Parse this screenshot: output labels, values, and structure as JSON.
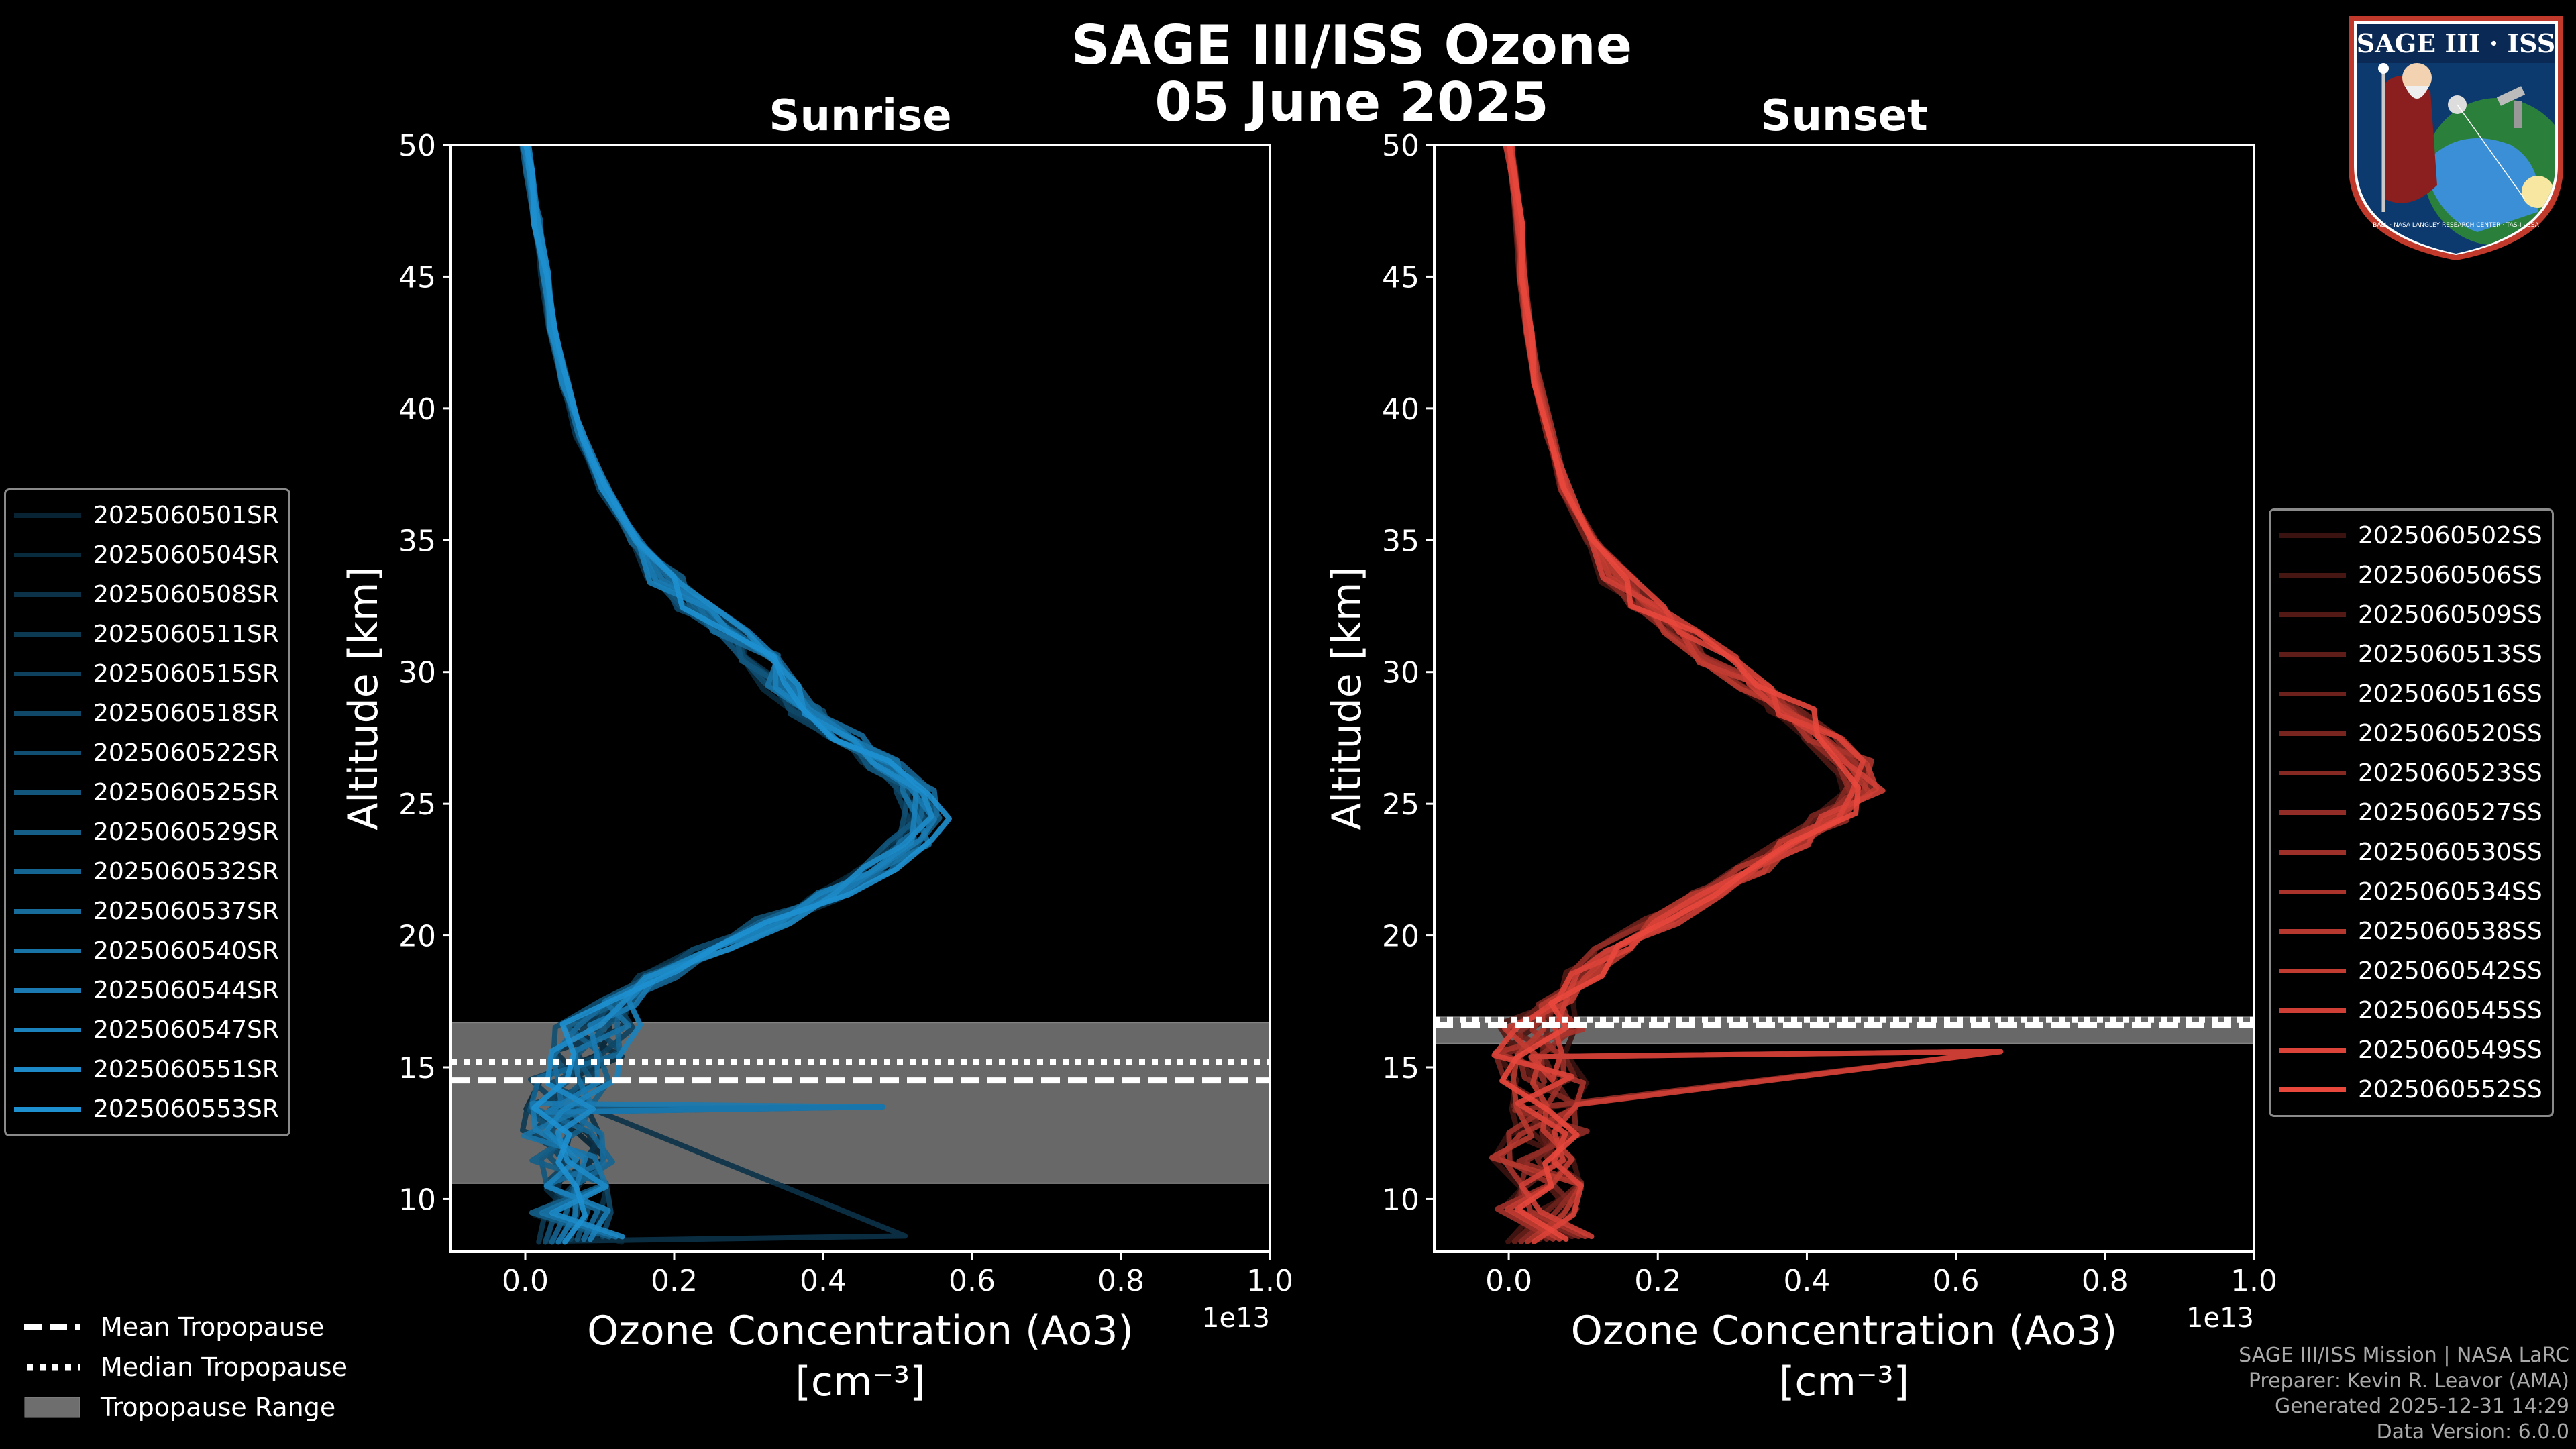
{
  "figure": {
    "title_line1": "SAGE III/ISS Ozone",
    "title_line2": "05 June 2025"
  },
  "logo": {
    "text_top": "SAGE III · ISS",
    "text_ring": "BALL · NASA LANGLEY RESEARCH CENTER · TAS-I · ESA"
  },
  "footer": {
    "mission": "SAGE III/ISS Mission | NASA LaRC",
    "preparer": "Preparer: Kevin R. Leavor (AMA)",
    "generated": "Generated 2025-12-31 14:29",
    "data_version": "Data Version: 6.0.0"
  },
  "tropopause_legend": {
    "mean": "Mean Tropopause",
    "median": "Median Tropopause",
    "range": "Tropopause Range"
  },
  "colors": {
    "sunrise": "#1e90d0",
    "sunset": "#e8473c",
    "tropo_range": "#6e6e6e"
  },
  "chart_data": [
    {
      "type": "line",
      "panel": "sunrise",
      "title": "Sunrise",
      "xlabel": "Ozone Concentration (Ao3)",
      "xunit": "[cm⁻³]",
      "x_multiplier": "1e13",
      "ylabel": "Altitude [km]",
      "xlim": [
        -0.1,
        1.0
      ],
      "ylim": [
        8,
        50
      ],
      "xticks": [
        "0.0",
        "0.2",
        "0.4",
        "0.6",
        "0.8",
        "1.0"
      ],
      "yticks": [
        "10",
        "15",
        "20",
        "25",
        "30",
        "35",
        "40",
        "45",
        "50"
      ],
      "tropopause": {
        "mean": 14.5,
        "median": 15.2,
        "range": [
          10.6,
          16.7
        ]
      },
      "events": [
        "2025060501SR",
        "2025060504SR",
        "2025060508SR",
        "2025060511SR",
        "2025060515SR",
        "2025060518SR",
        "2025060522SR",
        "2025060525SR",
        "2025060529SR",
        "2025060532SR",
        "2025060537SR",
        "2025060540SR",
        "2025060544SR",
        "2025060547SR",
        "2025060551SR",
        "2025060553SR"
      ],
      "altitudes": [
        8.5,
        9.5,
        10.5,
        11.5,
        12.5,
        13.5,
        14.5,
        15.5,
        16.5,
        17.5,
        18.5,
        19.5,
        20.5,
        21.5,
        22.5,
        23.5,
        24.5,
        25.5,
        26.5,
        27.5,
        28.5,
        29.5,
        30.5,
        31.5,
        32.5,
        33.5,
        35,
        37,
        39,
        41,
        43,
        45,
        47,
        49,
        50
      ],
      "mean_profile": [
        0.07,
        0.06,
        0.06,
        0.06,
        0.05,
        0.05,
        0.06,
        0.07,
        0.09,
        0.12,
        0.17,
        0.24,
        0.32,
        0.39,
        0.45,
        0.49,
        0.51,
        0.5,
        0.46,
        0.41,
        0.36,
        0.33,
        0.3,
        0.26,
        0.22,
        0.18,
        0.14,
        0.1,
        0.07,
        0.05,
        0.035,
        0.025,
        0.015,
        0.005,
        0.0
      ]
    },
    {
      "type": "line",
      "panel": "sunset",
      "title": "Sunset",
      "xlabel": "Ozone Concentration (Ao3)",
      "xunit": "[cm⁻³]",
      "x_multiplier": "1e13",
      "ylabel": "Altitude [km]",
      "xlim": [
        -0.1,
        1.0
      ],
      "ylim": [
        8,
        50
      ],
      "xticks": [
        "0.0",
        "0.2",
        "0.4",
        "0.6",
        "0.8",
        "1.0"
      ],
      "yticks": [
        "10",
        "15",
        "20",
        "25",
        "30",
        "35",
        "40",
        "45",
        "50"
      ],
      "tropopause": {
        "mean": 16.6,
        "median": 16.8,
        "range": [
          15.9,
          16.9
        ]
      },
      "events": [
        "2025060502SS",
        "2025060506SS",
        "2025060509SS",
        "2025060513SS",
        "2025060516SS",
        "2025060520SS",
        "2025060523SS",
        "2025060527SS",
        "2025060530SS",
        "2025060534SS",
        "2025060538SS",
        "2025060542SS",
        "2025060545SS",
        "2025060549SS",
        "2025060552SS"
      ],
      "altitudes": [
        8.5,
        9.5,
        10.5,
        11.5,
        12.5,
        13.5,
        14.5,
        15.5,
        16.5,
        17.5,
        18.5,
        19.5,
        20.5,
        21.5,
        22.5,
        23.5,
        24.5,
        25.5,
        26.5,
        27.5,
        28.5,
        29.5,
        30.5,
        31.5,
        32.5,
        33.5,
        35,
        37,
        39,
        41,
        43,
        45,
        47,
        49,
        50
      ],
      "mean_profile": [
        0.06,
        0.04,
        0.05,
        0.04,
        0.05,
        0.04,
        0.05,
        0.04,
        0.05,
        0.07,
        0.11,
        0.15,
        0.22,
        0.29,
        0.35,
        0.41,
        0.47,
        0.51,
        0.5,
        0.46,
        0.41,
        0.36,
        0.3,
        0.25,
        0.2,
        0.16,
        0.12,
        0.08,
        0.06,
        0.04,
        0.03,
        0.02,
        0.015,
        0.005,
        0.0
      ]
    }
  ]
}
